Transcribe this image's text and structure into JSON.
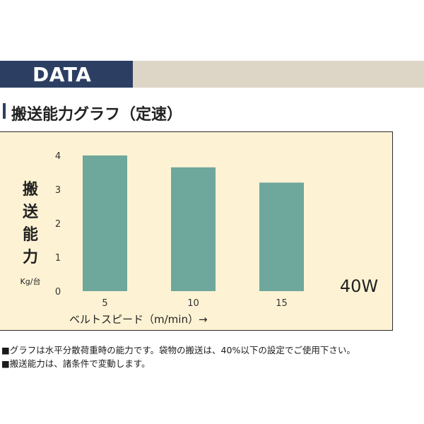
{
  "header": {
    "title": "DATA"
  },
  "section": {
    "title": "搬送能力グラフ（定速）"
  },
  "chart_data": {
    "type": "bar",
    "categories": [
      "5",
      "10",
      "15"
    ],
    "values": [
      4.0,
      3.65,
      3.2
    ],
    "ylim": [
      0,
      4
    ],
    "yticks": [
      "0",
      "1",
      "2",
      "3",
      "4"
    ],
    "ylabel": "搬送能力",
    "yunit": "Kg/台",
    "xlabel": "ベルトスピード（m/min）→",
    "annotation": "40W",
    "grid": false,
    "bar_color": "#6ea79c",
    "background": "#fdf3d4"
  },
  "notes": [
    "■グラフは水平分散荷重時の能力です。袋物の搬送は、40%以下の設定でご使用下さい。",
    "■搬送能力は、諸条件で変動します。"
  ]
}
